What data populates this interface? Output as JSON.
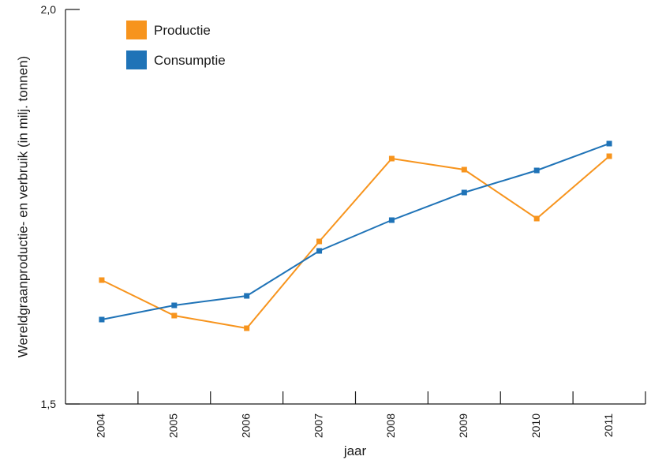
{
  "chart_data": {
    "type": "line",
    "title": "",
    "xlabel": "jaar",
    "ylabel": "Wereldgraanproductie- en verbruik (in milj. tonnen)",
    "categories": [
      "2004",
      "2005",
      "2006",
      "2007",
      "2008",
      "2009",
      "2010",
      "2011"
    ],
    "ylim": [
      1.5,
      2.0
    ],
    "y_tick_labels": [
      "1,5",
      "2,0"
    ],
    "grid": false,
    "legend_position": "top-left",
    "series": [
      {
        "name": "Productie",
        "color": "#F7941D",
        "values": [
          1.657,
          1.612,
          1.596,
          1.706,
          1.811,
          1.797,
          1.735,
          1.814
        ]
      },
      {
        "name": "Consumptie",
        "color": "#1F73B7",
        "values": [
          1.607,
          1.625,
          1.637,
          1.694,
          1.733,
          1.768,
          1.796,
          1.83
        ]
      }
    ]
  }
}
